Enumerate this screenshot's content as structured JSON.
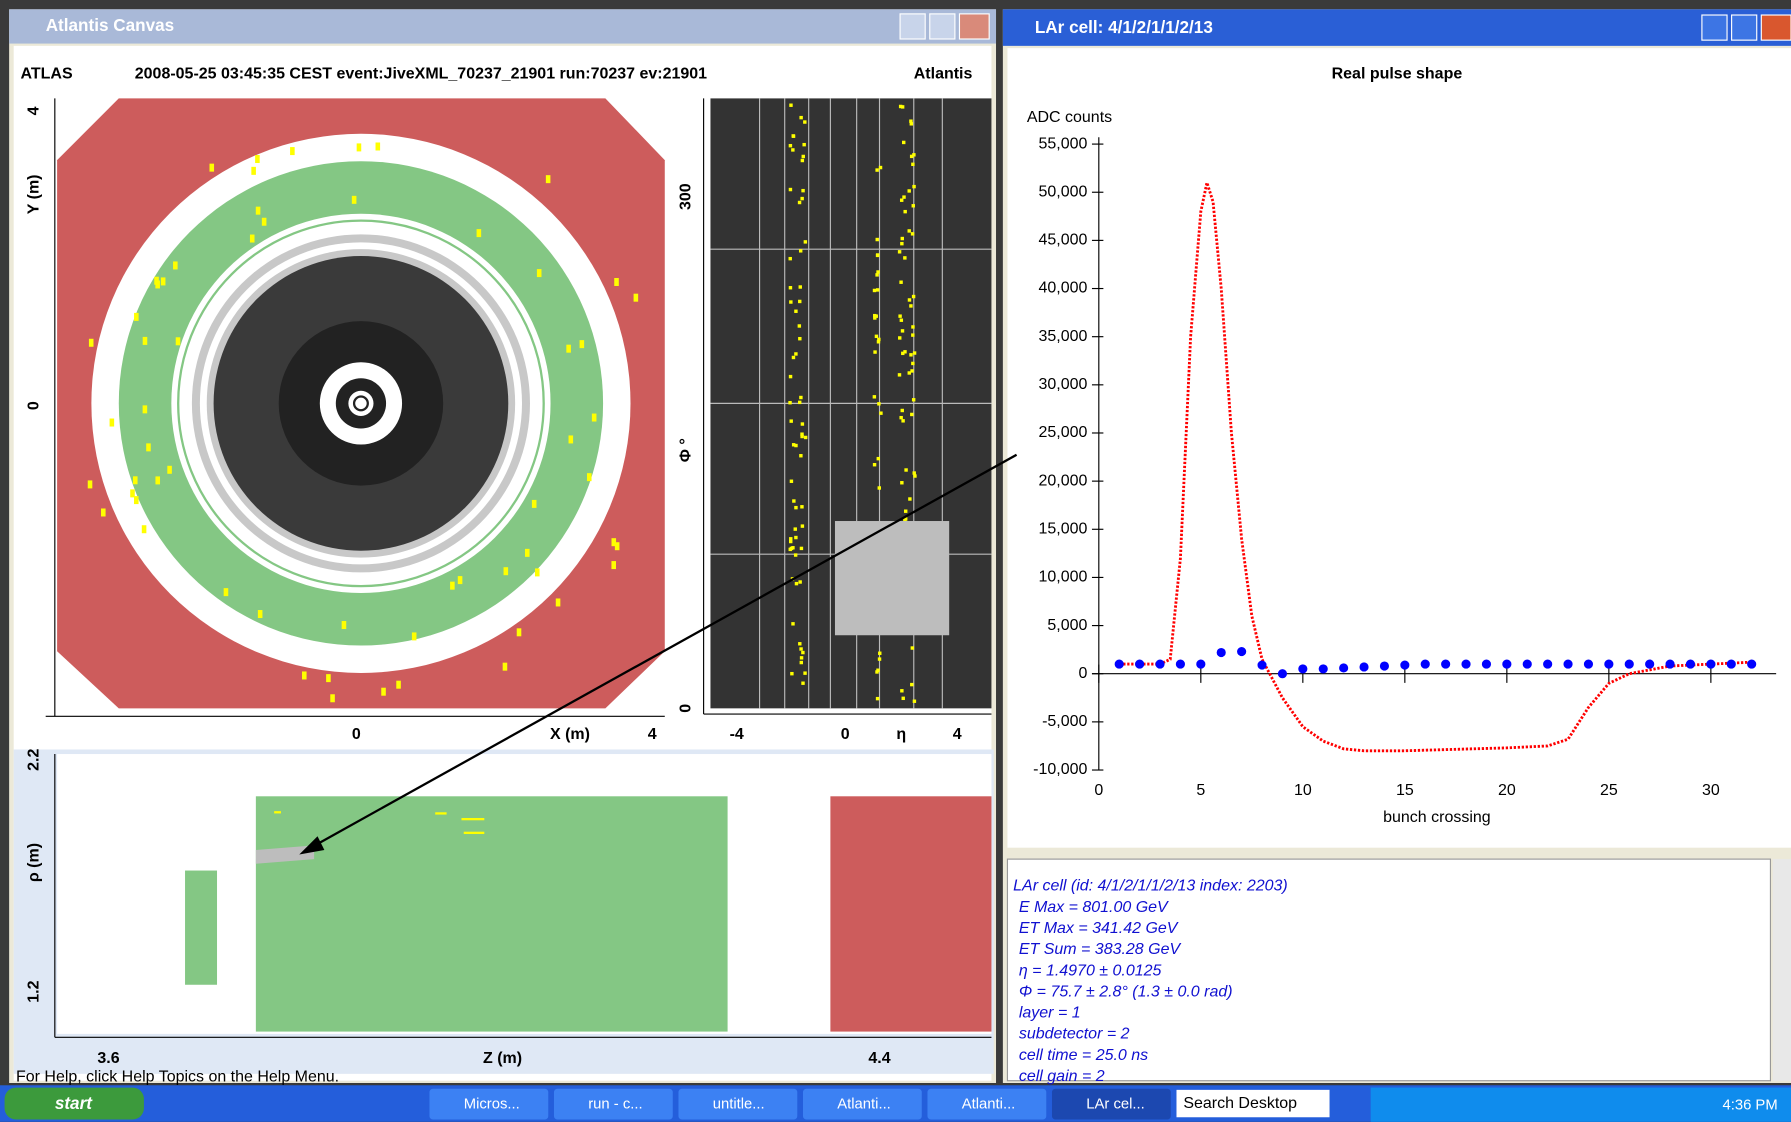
{
  "left_window": {
    "title": "Atlantis Canvas",
    "header": {
      "left": "ATLAS",
      "center": "2008-05-25 03:45:35 CEST event:JiveXML_70237_21901 run:70237 ev:21901",
      "right": "Atlantis"
    },
    "xy_view": {
      "y_ticks": [
        "4",
        "0"
      ],
      "y_label": "Y (m)",
      "x_ticks": [
        "0",
        "4"
      ],
      "x_label": "X (m)"
    },
    "phi_eta_view": {
      "y_ticks": [
        "300",
        "0"
      ],
      "y_label": "Φ °",
      "x_ticks": [
        "-4",
        "0",
        "4"
      ],
      "x_label": "η"
    },
    "rho_z_view": {
      "y_ticks": [
        "2.2",
        "1.2"
      ],
      "y_label": "ρ (m)",
      "x_ticks": [
        "3.6",
        "4.4"
      ],
      "x_label": "Z (m)"
    },
    "status": "For Help, click Help Topics on the Help Menu."
  },
  "right_window": {
    "title": "LAr cell: 4/1/2/1/1/2/13",
    "info": [
      "LAr cell (id: 4/1/2/1/1/2/13 index: 2203)",
      "E Max = 801.00 GeV",
      "ET Max = 341.42 GeV",
      "ET Sum = 383.28 GeV",
      "η = 1.4970 ± 0.0125",
      "Φ = 75.7 ± 2.8°  (1.3  ± 0.0 rad)",
      "layer = 1",
      "subdetector = 2",
      "cell time = 25.0 ns",
      "cell gain = 2"
    ]
  },
  "chart_data": {
    "type": "line",
    "title": "Real pulse shape",
    "y_label": "ADC counts",
    "x_label": "bunch crossing",
    "xlim": [
      0,
      33.2
    ],
    "ylim": [
      -10000,
      55000
    ],
    "xticks": [
      0,
      5,
      10,
      15,
      20,
      25,
      30
    ],
    "yticks": [
      {
        "value": 55000,
        "label": "55,000"
      },
      {
        "value": 50000,
        "label": "50,000"
      },
      {
        "value": 45000,
        "label": "45,000"
      },
      {
        "value": 40000,
        "label": "40,000"
      },
      {
        "value": 35000,
        "label": "35,000"
      },
      {
        "value": 30000,
        "label": "30,000"
      },
      {
        "value": 25000,
        "label": "25,000"
      },
      {
        "value": 20000,
        "label": "20,000"
      },
      {
        "value": 15000,
        "label": "15,000"
      },
      {
        "value": 10000,
        "label": "10,000"
      },
      {
        "value": 5000,
        "label": "5,000"
      },
      0,
      {
        "value": -5000,
        "label": "-5,000"
      },
      {
        "value": -10000,
        "label": "-10,000"
      }
    ],
    "series": [
      {
        "color": "#ff0000",
        "style": "line",
        "x": [
          1,
          3,
          3.5,
          4,
          4.5,
          5,
          5.3,
          5.6,
          6,
          6.5,
          7,
          7.5,
          8,
          9,
          10,
          11,
          12,
          13,
          15,
          20,
          22,
          23,
          24,
          25,
          26,
          28,
          30,
          32
        ],
        "values": [
          1000,
          1000,
          1500,
          12000,
          35000,
          48000,
          51000,
          49000,
          40000,
          25000,
          14000,
          6000,
          1500,
          -2500,
          -5500,
          -7000,
          -7800,
          -8000,
          -8000,
          -7700,
          -7500,
          -6800,
          -3500,
          -1000,
          0,
          800,
          1000,
          1200
        ]
      },
      {
        "color": "#0000ff",
        "style": "points",
        "x": [
          1,
          2,
          3,
          4,
          5,
          6,
          7,
          8,
          9,
          10,
          11,
          12,
          13,
          14,
          15,
          16,
          17,
          18,
          19,
          20,
          21,
          22,
          23,
          24,
          25,
          26,
          27,
          28,
          29,
          30,
          31,
          32
        ],
        "values": [
          1000,
          1000,
          1000,
          1000,
          1000,
          2200,
          2300,
          900,
          0,
          500,
          500,
          600,
          700,
          800,
          900,
          1000,
          1000,
          1000,
          1000,
          1000,
          1000,
          1000,
          1000,
          1000,
          1000,
          1000,
          1000,
          1000,
          1000,
          1000,
          1000,
          1000
        ]
      }
    ]
  },
  "taskbar": {
    "start": "start",
    "items": [
      "Micros...",
      "run - c...",
      "untitle...",
      "Atlanti...",
      "Atlanti...",
      "LAr cel..."
    ],
    "search": "Search Desktop",
    "clock": "4:36 PM"
  }
}
